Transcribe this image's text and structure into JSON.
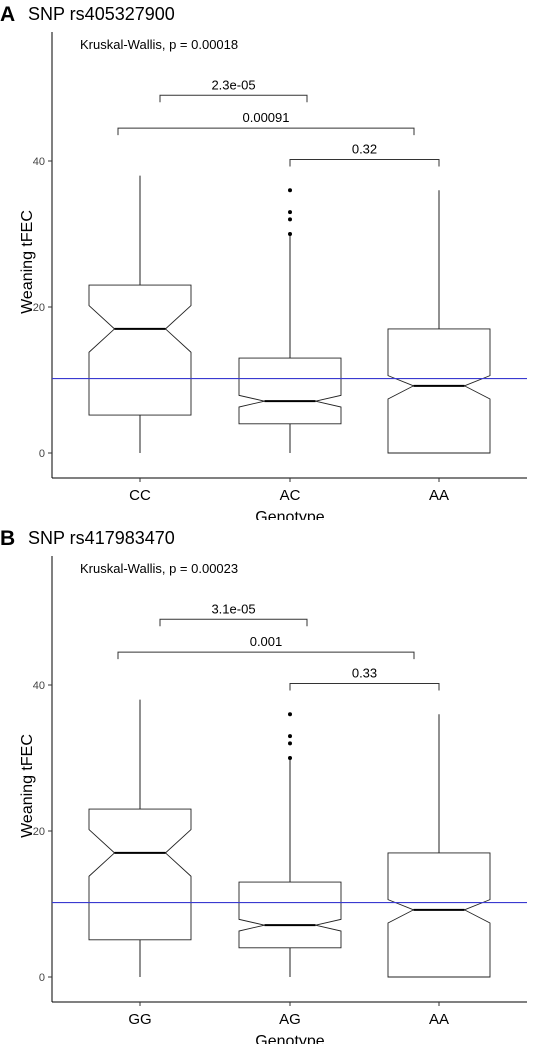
{
  "chart_data": [
    {
      "type": "boxplot",
      "panel_label": "A",
      "title": "SNP rs405327900",
      "xlabel": "Genotype",
      "ylabel": "Weaning tFEC",
      "ylim": [
        0,
        55
      ],
      "yticks": [
        0,
        20,
        40
      ],
      "categories": [
        "CC",
        "AC",
        "AA"
      ],
      "boxes": [
        {
          "category": "CC",
          "min": 0,
          "q1": 5.2,
          "median": 17,
          "q3": 23,
          "max": 38,
          "notch_low": 13.8,
          "notch_high": 20.2,
          "outliers": []
        },
        {
          "category": "AC",
          "min": 0,
          "q1": 4,
          "median": 7.1,
          "q3": 13,
          "max": 30,
          "notch_low": 6.3,
          "notch_high": 7.9,
          "outliers": [
            30,
            32,
            33,
            36
          ]
        },
        {
          "category": "AA",
          "min": 0,
          "q1": 0,
          "median": 9.2,
          "q3": 17,
          "max": 36,
          "notch_low": 7.4,
          "notch_high": 10.6,
          "outliers": []
        }
      ],
      "reference_line": {
        "y": 10.2,
        "color": "#3a3ad0"
      },
      "annotation": "Kruskal-Wallis, p = 0.00018",
      "comparisons": [
        {
          "from": "CC",
          "to": "AC",
          "label": "2.3e-05",
          "y": 49
        },
        {
          "from": "CC",
          "to": "AA",
          "label": "0.00091",
          "y": 44.5
        },
        {
          "from": "AC",
          "to": "AA",
          "label": "0.32",
          "y": 40.2
        }
      ]
    },
    {
      "type": "boxplot",
      "panel_label": "B",
      "title": "SNP rs417983470",
      "xlabel": "Genotype",
      "ylabel": "Weaning tFEC",
      "ylim": [
        0,
        55
      ],
      "yticks": [
        0,
        20,
        40
      ],
      "categories": [
        "GG",
        "AG",
        "AA"
      ],
      "boxes": [
        {
          "category": "GG",
          "min": 0,
          "q1": 5.1,
          "median": 17,
          "q3": 23,
          "max": 38,
          "notch_low": 13.8,
          "notch_high": 20.2,
          "outliers": []
        },
        {
          "category": "AG",
          "min": 0,
          "q1": 4,
          "median": 7.1,
          "q3": 13,
          "max": 30,
          "notch_low": 6.3,
          "notch_high": 7.9,
          "outliers": [
            30,
            32,
            33,
            36
          ]
        },
        {
          "category": "AA",
          "min": 0,
          "q1": 0,
          "median": 9.2,
          "q3": 17,
          "max": 36,
          "notch_low": 7.4,
          "notch_high": 10.6,
          "outliers": []
        }
      ],
      "reference_line": {
        "y": 10.2,
        "color": "#3a3ad0"
      },
      "annotation": "Kruskal-Wallis, p = 0.00023",
      "comparisons": [
        {
          "from": "GG",
          "to": "AG",
          "label": "3.1e-05",
          "y": 49
        },
        {
          "from": "GG",
          "to": "AA",
          "label": "0.001",
          "y": 44.5
        },
        {
          "from": "AG",
          "to": "AA",
          "label": "0.33",
          "y": 40.2
        }
      ]
    }
  ]
}
